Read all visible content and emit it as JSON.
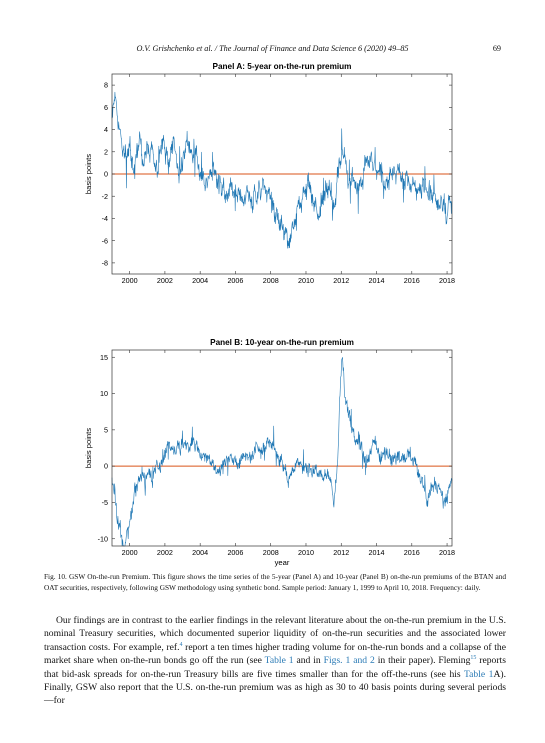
{
  "header": {
    "running_head": "O.V. Grishchenko et al. / The Journal of Finance and Data Science 6 (2020) 49–85",
    "page_number": "69"
  },
  "chart_data": [
    {
      "type": "line",
      "title": "Panel A: 5-year on-the-run premium",
      "xlabel": "",
      "ylabel": "basis points",
      "xlim": [
        1999.0,
        2018.28
      ],
      "ylim": [
        -9,
        9
      ],
      "yticks": [
        -8,
        -6,
        -4,
        -2,
        0,
        2,
        4,
        6,
        8
      ],
      "xticks": [
        2000,
        2002,
        2004,
        2006,
        2008,
        2010,
        2012,
        2014,
        2016,
        2018
      ],
      "reference_line": 0,
      "colors": {
        "series": "#1f77b4",
        "zero_line": "#d95319"
      },
      "series": [
        {
          "anchors": [
            [
              1999.0,
              5.2
            ],
            [
              1999.2,
              6.8
            ],
            [
              1999.4,
              4.0
            ],
            [
              1999.6,
              2.0
            ],
            [
              1999.8,
              1.2
            ],
            [
              2000.0,
              2.8
            ],
            [
              2000.2,
              0.3
            ],
            [
              2000.4,
              1.8
            ],
            [
              2000.6,
              3.0
            ],
            [
              2000.8,
              0.6
            ],
            [
              2001.0,
              2.5
            ],
            [
              2001.3,
              2.0
            ],
            [
              2001.6,
              0.8
            ],
            [
              2001.9,
              2.8
            ],
            [
              2002.2,
              1.2
            ],
            [
              2002.5,
              3.2
            ],
            [
              2002.8,
              0.5
            ],
            [
              2003.1,
              2.2
            ],
            [
              2003.4,
              3.0
            ],
            [
              2003.7,
              1.0
            ],
            [
              2004.0,
              0.8
            ],
            [
              2004.3,
              -0.5
            ],
            [
              2004.6,
              1.0
            ],
            [
              2004.9,
              -0.4
            ],
            [
              2005.2,
              -1.2
            ],
            [
              2005.5,
              -1.8
            ],
            [
              2005.8,
              -1.0
            ],
            [
              2006.1,
              -2.1
            ],
            [
              2006.4,
              -2.3
            ],
            [
              2006.7,
              -1.6
            ],
            [
              2007.0,
              -2.5
            ],
            [
              2007.3,
              -1.6
            ],
            [
              2007.6,
              -1.0
            ],
            [
              2007.9,
              -1.3
            ],
            [
              2008.2,
              -3.4
            ],
            [
              2008.5,
              -4.2
            ],
            [
              2008.8,
              -5.2
            ],
            [
              2009.0,
              -6.5
            ],
            [
              2009.2,
              -4.8
            ],
            [
              2009.5,
              -3.2
            ],
            [
              2009.8,
              -2.0
            ],
            [
              2010.1,
              -0.8
            ],
            [
              2010.4,
              -2.6
            ],
            [
              2010.7,
              -3.4
            ],
            [
              2011.0,
              -2.5
            ],
            [
              2011.3,
              -1.0
            ],
            [
              2011.6,
              -2.8
            ],
            [
              2011.9,
              0.8
            ],
            [
              2012.1,
              2.2
            ],
            [
              2012.4,
              -0.6
            ],
            [
              2012.7,
              -0.2
            ],
            [
              2013.0,
              -1.0
            ],
            [
              2013.3,
              0.2
            ],
            [
              2013.6,
              1.4
            ],
            [
              2013.9,
              0.4
            ],
            [
              2014.2,
              0.0
            ],
            [
              2014.5,
              -1.2
            ],
            [
              2014.8,
              -0.4
            ],
            [
              2015.1,
              0.6
            ],
            [
              2015.4,
              0.2
            ],
            [
              2015.7,
              -0.8
            ],
            [
              2016.0,
              -0.6
            ],
            [
              2016.3,
              -1.4
            ],
            [
              2016.6,
              -0.8
            ],
            [
              2016.9,
              -2.0
            ],
            [
              2017.2,
              -1.8
            ],
            [
              2017.5,
              -3.0
            ],
            [
              2017.8,
              -2.5
            ],
            [
              2018.0,
              -3.5
            ],
            [
              2018.28,
              -2.5
            ]
          ]
        }
      ]
    },
    {
      "type": "line",
      "title": "Panel B: 10-year on-the-run premium",
      "xlabel": "year",
      "ylabel": "basis points",
      "xlim": [
        1999.0,
        2018.28
      ],
      "ylim": [
        -11,
        16
      ],
      "yticks": [
        -10,
        -5,
        0,
        5,
        10,
        15
      ],
      "xticks": [
        2000,
        2002,
        2004,
        2006,
        2008,
        2010,
        2012,
        2014,
        2016,
        2018
      ],
      "reference_line": 0,
      "colors": {
        "series": "#1f77b4",
        "zero_line": "#d95319"
      },
      "series": [
        {
          "anchors": [
            [
              1999.0,
              -1.5
            ],
            [
              1999.15,
              -4.0
            ],
            [
              1999.3,
              -7.0
            ],
            [
              1999.5,
              -9.5
            ],
            [
              1999.7,
              -11.0
            ],
            [
              1999.9,
              -8.5
            ],
            [
              2000.1,
              -6.5
            ],
            [
              2000.3,
              -3.0
            ],
            [
              2000.5,
              -2.0
            ],
            [
              2000.7,
              -0.8
            ],
            [
              2000.9,
              -2.6
            ],
            [
              2001.1,
              -0.8
            ],
            [
              2001.3,
              -2.2
            ],
            [
              2001.5,
              0.6
            ],
            [
              2001.7,
              -0.4
            ],
            [
              2001.9,
              1.0
            ],
            [
              2002.1,
              2.5
            ],
            [
              2002.4,
              3.0
            ],
            [
              2002.7,
              2.6
            ],
            [
              2002.9,
              3.4
            ],
            [
              2003.2,
              2.4
            ],
            [
              2003.5,
              3.0
            ],
            [
              2003.8,
              2.8
            ],
            [
              2004.1,
              1.2
            ],
            [
              2004.3,
              1.6
            ],
            [
              2004.5,
              0.2
            ],
            [
              2004.7,
              -0.8
            ],
            [
              2004.9,
              -0.2
            ],
            [
              2005.1,
              -0.3
            ],
            [
              2005.4,
              0.6
            ],
            [
              2005.7,
              1.0
            ],
            [
              2006.0,
              0.8
            ],
            [
              2006.3,
              1.4
            ],
            [
              2006.6,
              2.2
            ],
            [
              2006.9,
              1.2
            ],
            [
              2007.2,
              2.6
            ],
            [
              2007.5,
              2.0
            ],
            [
              2007.8,
              2.8
            ],
            [
              2008.1,
              2.0
            ],
            [
              2008.4,
              1.5
            ],
            [
              2008.7,
              0.0
            ],
            [
              2009.0,
              -1.5
            ],
            [
              2009.2,
              -0.5
            ],
            [
              2009.5,
              1.0
            ],
            [
              2009.8,
              -0.2
            ],
            [
              2010.1,
              -0.5
            ],
            [
              2010.4,
              -1.2
            ],
            [
              2010.7,
              -0.5
            ],
            [
              2011.0,
              -2.0
            ],
            [
              2011.3,
              -1.2
            ],
            [
              2011.6,
              -4.5
            ],
            [
              2011.8,
              0.5
            ],
            [
              2011.95,
              11.0
            ],
            [
              2012.05,
              15.5
            ],
            [
              2012.2,
              10.0
            ],
            [
              2012.4,
              7.5
            ],
            [
              2012.6,
              5.5
            ],
            [
              2012.8,
              3.5
            ],
            [
              2013.0,
              4.5
            ],
            [
              2013.2,
              2.0
            ],
            [
              2013.4,
              0.5
            ],
            [
              2013.6,
              1.5
            ],
            [
              2013.8,
              3.5
            ],
            [
              2014.0,
              2.5
            ],
            [
              2014.3,
              1.0
            ],
            [
              2014.6,
              1.8
            ],
            [
              2014.9,
              0.5
            ],
            [
              2015.2,
              1.5
            ],
            [
              2015.5,
              0.8
            ],
            [
              2015.8,
              2.5
            ],
            [
              2016.1,
              1.0
            ],
            [
              2016.4,
              -1.0
            ],
            [
              2016.7,
              -2.0
            ],
            [
              2016.9,
              -4.5
            ],
            [
              2017.2,
              -3.0
            ],
            [
              2017.5,
              -2.0
            ],
            [
              2017.8,
              -5.5
            ],
            [
              2018.0,
              -4.0
            ],
            [
              2018.28,
              -2.0
            ]
          ]
        }
      ]
    }
  ],
  "caption": {
    "label": "Fig. 10.",
    "text": "GSW On-the-run Premium. This figure shows the time series of the 5-year (Panel A) and 10-year (Panel B) on-the-run premiums of the BTAN and OAT securities, respectively, following GSW methodology using synthetic bond. Sample period: January 1, 1999 to April 10, 2018. Frequency: daily."
  },
  "body": {
    "p1_a": "Our findings are in contrast to the earlier findings in the relevant literature about the on-the-run premium in the U.S. nominal Treasury securities, which documented superior liquidity of on-the-run securities and the associated lower transaction costs. For example, ref.",
    "p1_sup1": "4",
    "p1_b": " report a ten times higher trading volume for on-the-run bonds and a collapse of the market share when on-the-run bonds go off the run (see ",
    "p1_ref1": "Table 1",
    "p1_c": " and in ",
    "p1_ref2": "Figs. 1 and 2",
    "p1_d": " in their paper). Fleming",
    "p1_sup2": "15",
    "p1_e": " reports that bid-ask spreads for on-the-run Treasury bills are five times smaller than for the off-the-runs (see his ",
    "p1_ref3": "Table 1",
    "p1_f": "A). Finally, GSW also report that the U.S. on-the-run premium was as high as 30 to 40 basis points during several periods—for"
  }
}
